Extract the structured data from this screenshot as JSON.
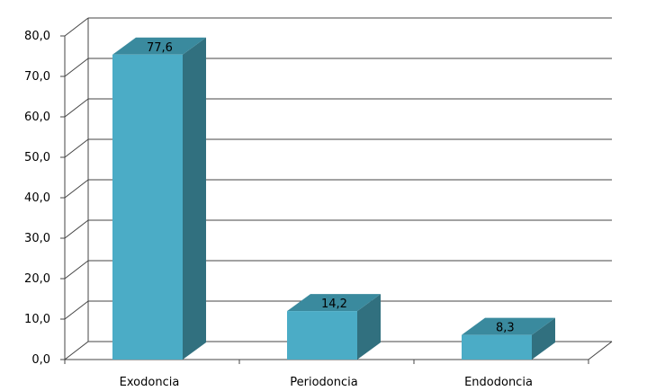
{
  "chart_data": {
    "type": "bar",
    "categories": [
      "Exodoncia",
      "Periodoncia",
      "Endodoncia"
    ],
    "values": [
      77.6,
      14.2,
      8.3
    ],
    "data_labels": [
      "77,6",
      "14,2",
      "8,3"
    ],
    "y_ticks": [
      {
        "value": 0,
        "label": "0,0"
      },
      {
        "value": 10,
        "label": "10,0"
      },
      {
        "value": 20,
        "label": "20,0"
      },
      {
        "value": 30,
        "label": "30,0"
      },
      {
        "value": 40,
        "label": "40,0"
      },
      {
        "value": 50,
        "label": "50,0"
      },
      {
        "value": 60,
        "label": "60,0"
      },
      {
        "value": 70,
        "label": "70,0"
      },
      {
        "value": 80,
        "label": "80,0"
      }
    ],
    "ylim": [
      0,
      80
    ],
    "grid": true,
    "style": "3d-column",
    "colors": {
      "bar_front": "#4BACC6",
      "bar_side": "#31707F",
      "bar_top": "#3A8A9E",
      "grid": "#444444"
    },
    "title": "",
    "xlabel": "",
    "ylabel": ""
  }
}
